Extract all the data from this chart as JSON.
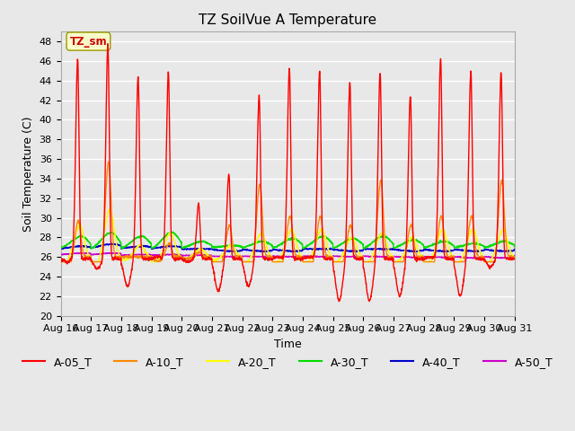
{
  "title": "TZ SoilVue A Temperature",
  "xlabel": "Time",
  "ylabel": "Soil Temperature (C)",
  "ylim": [
    20,
    49
  ],
  "yticks": [
    20,
    22,
    24,
    26,
    28,
    30,
    32,
    34,
    36,
    38,
    40,
    42,
    44,
    46,
    48
  ],
  "xtick_labels": [
    "Aug 16",
    "Aug 17",
    "Aug 18",
    "Aug 19",
    "Aug 20",
    "Aug 21",
    "Aug 22",
    "Aug 23",
    "Aug 24",
    "Aug 25",
    "Aug 26",
    "Aug 27",
    "Aug 28",
    "Aug 29",
    "Aug 30",
    "Aug 31"
  ],
  "series_colors": {
    "A-05_T": "#ff0000",
    "A-10_T": "#ff8800",
    "A-20_T": "#ffff00",
    "A-30_T": "#00dd00",
    "A-40_T": "#0000cc",
    "A-50_T": "#cc00cc"
  },
  "annotation_text": "TZ_sm",
  "annotation_color": "#cc0000",
  "annotation_bg": "#ffffcc",
  "bg_color": "#e8e8e8",
  "grid_color": "#ffffff",
  "title_fontsize": 11,
  "axis_label_fontsize": 9,
  "tick_fontsize": 8,
  "legend_fontsize": 9,
  "day_peaks_A05": [
    46.2,
    47.8,
    44.4,
    44.8,
    31.5,
    34.5,
    42.5,
    45.2,
    45.0,
    43.8,
    44.8,
    42.5,
    46.2,
    45.0,
    44.8
  ],
  "day_troughs_A05": [
    25.5,
    24.8,
    23.0,
    26.0,
    25.5,
    22.5,
    23.0,
    26.0,
    26.0,
    21.5,
    21.5,
    22.0,
    26.0,
    22.0,
    25.0
  ],
  "day_peaks_A10": [
    30.0,
    36.5,
    26.0,
    27.5,
    26.5,
    29.5,
    34.0,
    30.5,
    30.5,
    29.5,
    34.5,
    29.5,
    30.5,
    30.5,
    34.5
  ],
  "day_peaks_A20": [
    30.0,
    32.0,
    27.5,
    29.0,
    27.0,
    27.5,
    29.0,
    29.5,
    29.5,
    28.5,
    29.0,
    28.5,
    29.5,
    29.5,
    29.5
  ],
  "day_peaks_A30": [
    28.5,
    29.0,
    28.5,
    29.0,
    27.8,
    27.2,
    27.8,
    28.2,
    28.5,
    28.2,
    28.5,
    28.0,
    27.8,
    27.5,
    27.8
  ],
  "day_peaks_A40": [
    27.2,
    27.5,
    27.2,
    27.2,
    26.8,
    26.5,
    26.5,
    26.5,
    26.8,
    26.5,
    26.8,
    26.5,
    26.5,
    26.5,
    26.5
  ],
  "day_peaks_A50": [
    26.5,
    26.5,
    26.3,
    26.3,
    26.2,
    26.0,
    26.0,
    26.0,
    26.0,
    26.0,
    26.0,
    25.9,
    25.9,
    25.8,
    25.8
  ],
  "base_A30": 27.0,
  "base_A40": 26.8,
  "base_A50": 26.1
}
